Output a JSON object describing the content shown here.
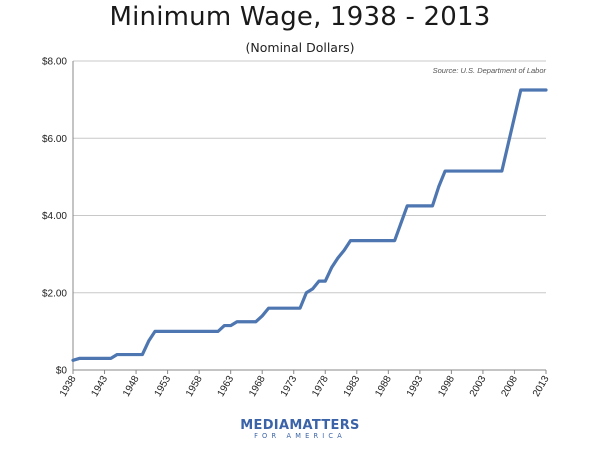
{
  "chart_data": {
    "type": "line",
    "title": "Minimum Wage, 1938 - 2013",
    "subtitle": "(Nominal Dollars)",
    "source": "Source: U.S. Department of Labor",
    "xlabel": "",
    "ylabel": "",
    "xlim": [
      1938,
      2013
    ],
    "ylim": [
      0,
      8
    ],
    "y_ticks": [
      {
        "value": 0,
        "label": "$0"
      },
      {
        "value": 2,
        "label": "$2.00"
      },
      {
        "value": 4,
        "label": "$4.00"
      },
      {
        "value": 6,
        "label": "$6.00"
      },
      {
        "value": 8,
        "label": "$8.00"
      }
    ],
    "x_ticks": [
      1938,
      1943,
      1948,
      1953,
      1958,
      1963,
      1968,
      1973,
      1978,
      1983,
      1988,
      1993,
      1998,
      2003,
      2008,
      2013
    ],
    "grid": "horizontal",
    "line_color": "#4e76b0",
    "series": [
      {
        "name": "",
        "x": [
          1938,
          1939,
          1940,
          1941,
          1942,
          1943,
          1944,
          1945,
          1946,
          1947,
          1948,
          1949,
          1950,
          1951,
          1952,
          1953,
          1954,
          1955,
          1956,
          1957,
          1958,
          1959,
          1960,
          1961,
          1962,
          1963,
          1964,
          1965,
          1966,
          1967,
          1968,
          1969,
          1970,
          1971,
          1972,
          1973,
          1974,
          1975,
          1976,
          1977,
          1978,
          1979,
          1980,
          1981,
          1982,
          1983,
          1984,
          1985,
          1986,
          1987,
          1988,
          1989,
          1990,
          1991,
          1992,
          1993,
          1994,
          1995,
          1996,
          1997,
          1998,
          1999,
          2000,
          2001,
          2002,
          2003,
          2004,
          2005,
          2006,
          2007,
          2008,
          2009,
          2010,
          2011,
          2012,
          2013
        ],
        "values": [
          0.25,
          0.3,
          0.3,
          0.3,
          0.3,
          0.3,
          0.3,
          0.4,
          0.4,
          0.4,
          0.4,
          0.4,
          0.75,
          1.0,
          1.0,
          1.0,
          1.0,
          1.0,
          1.0,
          1.0,
          1.0,
          1.0,
          1.0,
          1.0,
          1.15,
          1.15,
          1.25,
          1.25,
          1.25,
          1.25,
          1.4,
          1.6,
          1.6,
          1.6,
          1.6,
          1.6,
          1.6,
          2.0,
          2.1,
          2.3,
          2.3,
          2.65,
          2.9,
          3.1,
          3.35,
          3.35,
          3.35,
          3.35,
          3.35,
          3.35,
          3.35,
          3.35,
          3.8,
          4.25,
          4.25,
          4.25,
          4.25,
          4.25,
          4.75,
          5.15,
          5.15,
          5.15,
          5.15,
          5.15,
          5.15,
          5.15,
          5.15,
          5.15,
          5.15,
          5.85,
          6.55,
          7.25,
          7.25,
          7.25,
          7.25,
          7.25
        ]
      }
    ]
  },
  "branding": {
    "logo_part1": "MEDIA",
    "logo_part2": "MATTERS",
    "logo_sub": "FOR AMERICA"
  }
}
